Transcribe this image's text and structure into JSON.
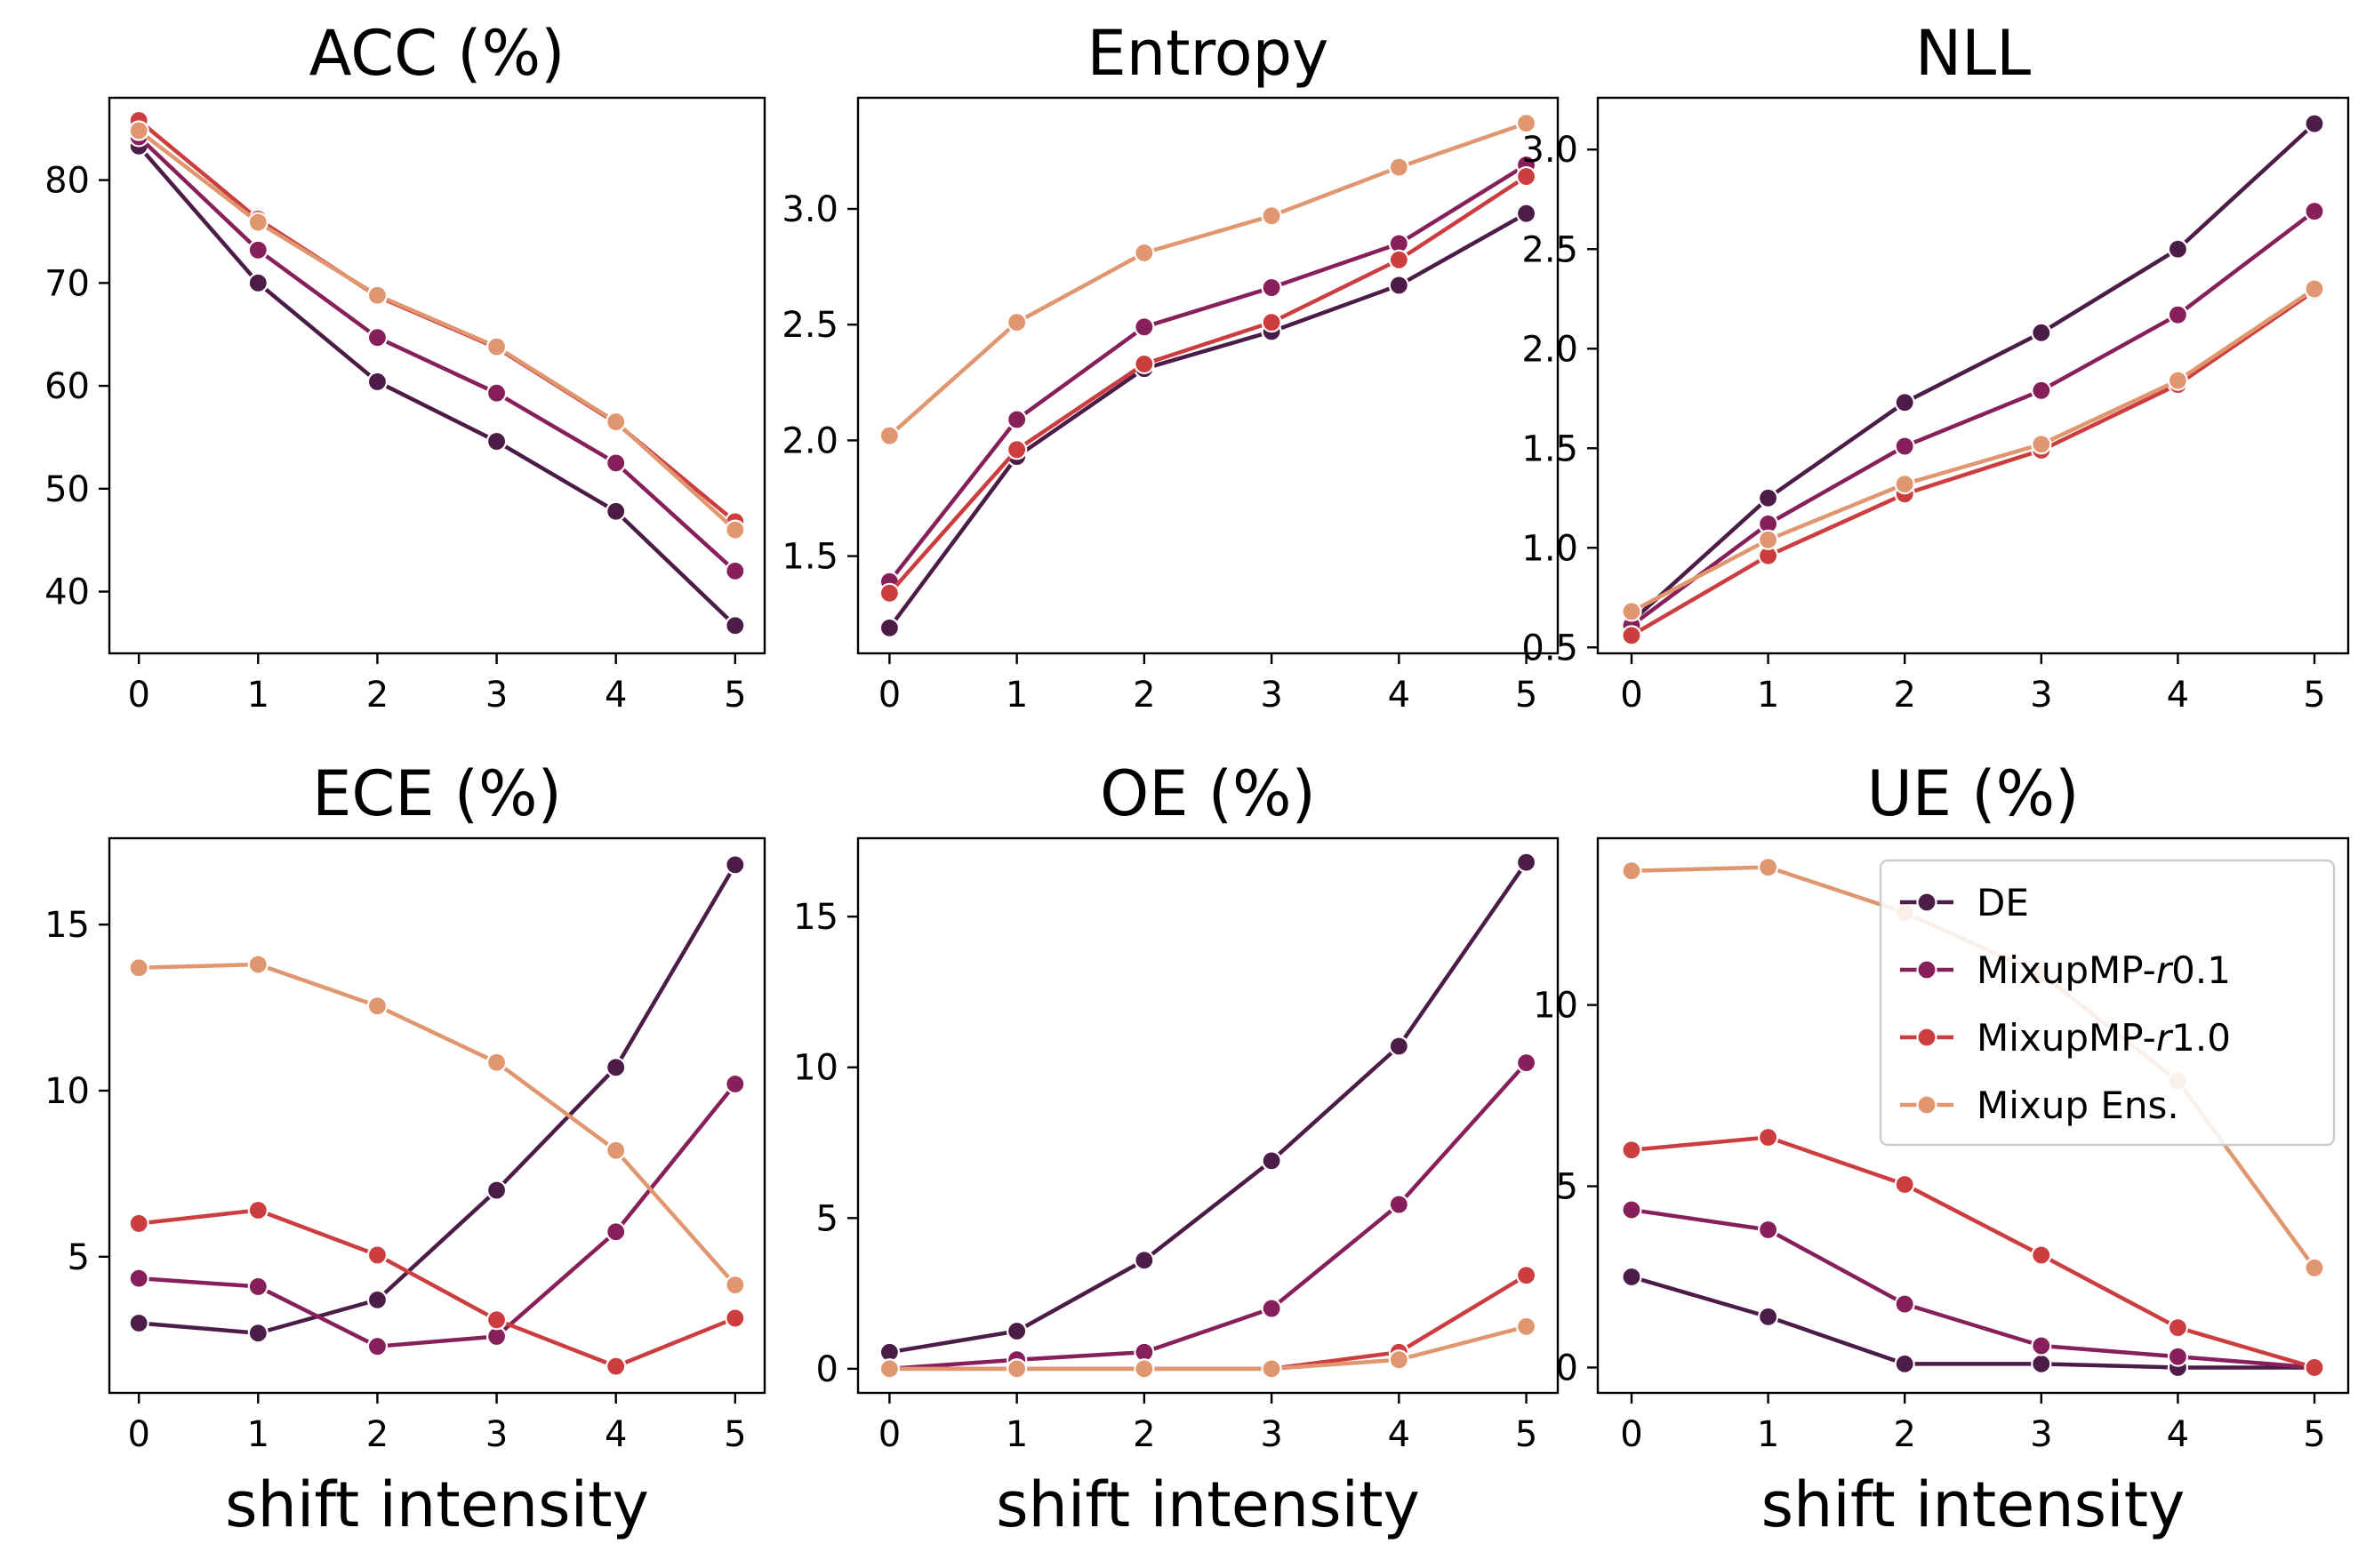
{
  "colors": {
    "DE": "#4a1c47",
    "MixupMP-r0.1": "#871f5a",
    "MixupMP-r1.0": "#cb3d3f",
    "Mixup Ens.": "#e0966f"
  },
  "chart_data": [
    {
      "type": "line",
      "title": "ACC (%)",
      "xlabel": "",
      "x": [
        0,
        1,
        2,
        3,
        4,
        5
      ],
      "xticks": [
        "0",
        "1",
        "2",
        "3",
        "4",
        "5"
      ],
      "ylim": [
        34,
        88
      ],
      "yticks": [
        40,
        50,
        60,
        70,
        80
      ],
      "ytick_labels": [
        "40",
        "50",
        "60",
        "70",
        "80"
      ],
      "series": [
        {
          "name": "DE",
          "values": [
            83.3,
            70.0,
            60.4,
            54.6,
            47.8,
            36.7
          ]
        },
        {
          "name": "MixupMP-r0.1",
          "values": [
            84.2,
            73.2,
            64.7,
            59.3,
            52.5,
            42.0
          ]
        },
        {
          "name": "MixupMP-r1.0",
          "values": [
            85.8,
            76.2,
            68.7,
            63.7,
            56.4,
            46.8
          ]
        },
        {
          "name": "Mixup Ens.",
          "values": [
            84.8,
            75.9,
            68.8,
            63.8,
            56.5,
            46.0
          ]
        }
      ]
    },
    {
      "type": "line",
      "title": "Entropy",
      "xlabel": "",
      "x": [
        0,
        1,
        2,
        3,
        4,
        5
      ],
      "xticks": [
        "0",
        "1",
        "2",
        "3",
        "4",
        "5"
      ],
      "ylim": [
        1.08,
        3.48
      ],
      "yticks": [
        1.5,
        2.0,
        2.5,
        3.0
      ],
      "ytick_labels": [
        "1.5",
        "2.0",
        "2.5",
        "3.0"
      ],
      "series": [
        {
          "name": "DE",
          "values": [
            1.19,
            1.93,
            2.31,
            2.47,
            2.67,
            2.98
          ]
        },
        {
          "name": "MixupMP-r0.1",
          "values": [
            1.39,
            2.09,
            2.49,
            2.66,
            2.85,
            3.19
          ]
        },
        {
          "name": "MixupMP-r1.0",
          "values": [
            1.34,
            1.96,
            2.33,
            2.51,
            2.78,
            3.14
          ]
        },
        {
          "name": "Mixup Ens.",
          "values": [
            2.02,
            2.51,
            2.81,
            2.97,
            3.18,
            3.37
          ]
        }
      ]
    },
    {
      "type": "line",
      "title": "NLL",
      "xlabel": "",
      "x": [
        0,
        1,
        2,
        3,
        4,
        5
      ],
      "xticks": [
        "0",
        "1",
        "2",
        "3",
        "4",
        "5"
      ],
      "ylim": [
        0.47,
        3.26
      ],
      "yticks": [
        0.5,
        1.0,
        1.5,
        2.0,
        2.5,
        3.0
      ],
      "ytick_labels": [
        "0.5",
        "1.0",
        "1.5",
        "2.0",
        "2.5",
        "3.0"
      ],
      "series": [
        {
          "name": "DE",
          "values": [
            0.63,
            1.25,
            1.73,
            2.08,
            2.5,
            3.13
          ]
        },
        {
          "name": "MixupMP-r0.1",
          "values": [
            0.61,
            1.12,
            1.51,
            1.79,
            2.17,
            2.69
          ]
        },
        {
          "name": "MixupMP-r1.0",
          "values": [
            0.56,
            0.96,
            1.27,
            1.49,
            1.82,
            2.29
          ]
        },
        {
          "name": "Mixup Ens.",
          "values": [
            0.68,
            1.04,
            1.32,
            1.52,
            1.84,
            2.3
          ]
        }
      ]
    },
    {
      "type": "line",
      "title": "ECE (%)",
      "xlabel": "shift intensity",
      "x": [
        0,
        1,
        2,
        3,
        4,
        5
      ],
      "xticks": [
        "0",
        "1",
        "2",
        "3",
        "4",
        "5"
      ],
      "ylim": [
        0.9,
        17.6
      ],
      "yticks": [
        5,
        10,
        15
      ],
      "ytick_labels": [
        "5",
        "10",
        "15"
      ],
      "series": [
        {
          "name": "DE",
          "values": [
            3.0,
            2.7,
            3.7,
            7.0,
            10.7,
            16.8
          ]
        },
        {
          "name": "MixupMP-r0.1",
          "values": [
            4.35,
            4.1,
            2.3,
            2.6,
            5.75,
            10.2
          ]
        },
        {
          "name": "MixupMP-r1.0",
          "values": [
            6.0,
            6.4,
            5.05,
            3.1,
            1.7,
            3.15
          ]
        },
        {
          "name": "Mixup Ens.",
          "values": [
            13.7,
            13.8,
            12.55,
            10.85,
            8.2,
            4.15
          ]
        }
      ]
    },
    {
      "type": "line",
      "title": "OE (%)",
      "xlabel": "shift intensity",
      "x": [
        0,
        1,
        2,
        3,
        4,
        5
      ],
      "xticks": [
        "0",
        "1",
        "2",
        "3",
        "4",
        "5"
      ],
      "ylim": [
        -0.8,
        17.6
      ],
      "yticks": [
        0,
        5,
        10,
        15
      ],
      "ytick_labels": [
        "0",
        "5",
        "10",
        "15"
      ],
      "series": [
        {
          "name": "DE",
          "values": [
            0.55,
            1.25,
            3.6,
            6.9,
            10.7,
            16.8
          ]
        },
        {
          "name": "MixupMP-r0.1",
          "values": [
            0.0,
            0.3,
            0.55,
            2.0,
            5.45,
            10.15
          ]
        },
        {
          "name": "MixupMP-r1.0",
          "values": [
            0.0,
            0.0,
            0.0,
            0.0,
            0.55,
            3.1
          ]
        },
        {
          "name": "Mixup Ens.",
          "values": [
            0.0,
            0.0,
            0.0,
            0.0,
            0.3,
            1.4
          ]
        }
      ]
    },
    {
      "type": "line",
      "title": "UE (%)",
      "xlabel": "shift intensity",
      "x": [
        0,
        1,
        2,
        3,
        4,
        5
      ],
      "xticks": [
        "0",
        "1",
        "2",
        "3",
        "4",
        "5"
      ],
      "ylim": [
        -0.7,
        14.6
      ],
      "yticks": [
        0,
        5,
        10
      ],
      "ytick_labels": [
        "0",
        "5",
        "10"
      ],
      "series": [
        {
          "name": "DE",
          "values": [
            2.5,
            1.4,
            0.1,
            0.1,
            0.0,
            0.0
          ]
        },
        {
          "name": "MixupMP-r0.1",
          "values": [
            4.35,
            3.8,
            1.75,
            0.6,
            0.3,
            0.0
          ]
        },
        {
          "name": "MixupMP-r1.0",
          "values": [
            6.0,
            6.35,
            5.05,
            3.1,
            1.1,
            0.0
          ]
        },
        {
          "name": "Mixup Ens.",
          "values": [
            13.7,
            13.8,
            12.55,
            10.85,
            7.9,
            2.75
          ]
        }
      ]
    }
  ],
  "legend": {
    "placement": "top-right of UE (%) panel",
    "entries": [
      {
        "key": "DE",
        "prefix": "DE",
        "italic": "",
        "suffix": ""
      },
      {
        "key": "MixupMP-r0.1",
        "prefix": "MixupMP-",
        "italic": "r",
        "suffix": "0.1"
      },
      {
        "key": "MixupMP-r1.0",
        "prefix": "MixupMP-",
        "italic": "r",
        "suffix": "1.0"
      },
      {
        "key": "Mixup Ens.",
        "prefix": "Mixup Ens.",
        "italic": "",
        "suffix": ""
      }
    ]
  }
}
